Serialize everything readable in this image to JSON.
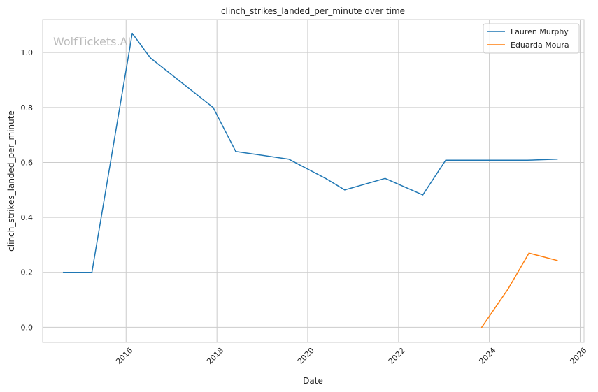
{
  "chart_data": {
    "type": "line",
    "title": "clinch_strikes_landed_per_minute over time",
    "xlabel": "Date",
    "ylabel": "clinch_strikes_landed_per_minute",
    "watermark": "WolfTickets.AI",
    "xlim": [
      "2014-03-01",
      "2026-02-01"
    ],
    "ylim": [
      -0.055,
      1.12
    ],
    "x_ticks": [
      "2016",
      "2018",
      "2020",
      "2022",
      "2024",
      "2026"
    ],
    "y_ticks": [
      "0.0",
      "0.2",
      "0.4",
      "0.6",
      "0.8",
      "1.0"
    ],
    "grid": true,
    "legend": "top-right",
    "series": [
      {
        "name": "Lauren Murphy",
        "color": "#1f77b4",
        "points": [
          [
            "2014-08-15",
            0.2
          ],
          [
            "2015-04-01",
            0.2
          ],
          [
            "2016-02-20",
            1.07
          ],
          [
            "2016-07-15",
            0.98
          ],
          [
            "2017-12-01",
            0.8
          ],
          [
            "2018-06-01",
            0.64
          ],
          [
            "2019-08-01",
            0.612
          ],
          [
            "2020-06-01",
            0.54
          ],
          [
            "2020-10-25",
            0.5
          ],
          [
            "2021-09-15",
            0.542
          ],
          [
            "2022-07-15",
            0.482
          ],
          [
            "2023-01-15",
            0.608
          ],
          [
            "2024-11-01",
            0.608
          ],
          [
            "2025-07-01",
            0.612
          ]
        ]
      },
      {
        "name": "Eduarda Moura",
        "color": "#ff7f0e",
        "points": [
          [
            "2023-11-01",
            0.0
          ],
          [
            "2024-06-01",
            0.14
          ],
          [
            "2024-11-15",
            0.27
          ],
          [
            "2025-07-01",
            0.243
          ]
        ]
      }
    ]
  }
}
